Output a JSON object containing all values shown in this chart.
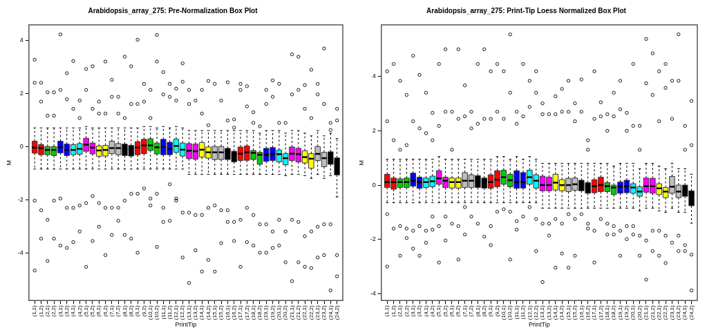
{
  "chart_data": [
    {
      "type": "box",
      "title": "Arabidopsis_array_275: Pre-Normalization Box Plot",
      "xlabel": "PrintTip",
      "ylabel": "M",
      "marker": "circle",
      "ylim": [
        -5.8,
        4.58
      ],
      "yticks": [
        -4,
        -2,
        0,
        2,
        4
      ],
      "categories": [
        "(1,1)",
        "(1,2)",
        "(2,1)",
        "(2,2)",
        "(3,1)",
        "(3,2)",
        "(4,1)",
        "(4,2)",
        "(5,1)",
        "(5,2)",
        "(6,1)",
        "(6,2)",
        "(7,1)",
        "(7,2)",
        "(8,1)",
        "(8,2)",
        "(9,1)",
        "(9,2)",
        "(10,1)",
        "(10,2)",
        "(11,1)",
        "(11,2)",
        "(12,1)",
        "(12,2)",
        "(13,1)",
        "(13,2)",
        "(14,1)",
        "(14,2)",
        "(15,1)",
        "(15,2)",
        "(16,1)",
        "(16,2)",
        "(17,1)",
        "(17,2)",
        "(18,1)",
        "(18,2)",
        "(19,1)",
        "(19,2)",
        "(20,1)",
        "(20,2)",
        "(21,1)",
        "(21,2)",
        "(22,1)",
        "(22,2)",
        "(23,1)",
        "(23,2)",
        "(24,1)",
        "(24,2)"
      ],
      "colors": [
        "#ff0000",
        "#ff0000",
        "#00cd00",
        "#00cd00",
        "#0000ff",
        "#0000ff",
        "#00ffff",
        "#00ffff",
        "#ff00ff",
        "#ff00ff",
        "#ffff00",
        "#ffff00",
        "#bebebe",
        "#bebebe",
        "#000000",
        "#000000",
        "#ff0000",
        "#ff0000",
        "#00cd00",
        "#00cd00",
        "#0000ff",
        "#0000ff",
        "#00ffff",
        "#00ffff",
        "#ff00ff",
        "#ff00ff",
        "#ffff00",
        "#ffff00",
        "#bebebe",
        "#bebebe",
        "#000000",
        "#000000",
        "#ff0000",
        "#ff0000",
        "#00cd00",
        "#00cd00",
        "#0000ff",
        "#0000ff",
        "#00ffff",
        "#00ffff",
        "#ff00ff",
        "#ff00ff",
        "#ffff00",
        "#ffff00",
        "#bebebe",
        "#bebebe",
        "#000000",
        "#000000"
      ],
      "boxes": [
        {
          "low": -0.85,
          "q1": -0.25,
          "median": -0.04,
          "q3": 0.2,
          "high": 0.7,
          "outliers": [
            3.27,
            2.4,
            -2.04,
            -4.67
          ]
        },
        {
          "low": -0.85,
          "q1": -0.31,
          "median": -0.06,
          "q3": 0.07,
          "high": 0.7,
          "outliers": [
            2.4,
            1.69,
            -2.4,
            -3.47
          ]
        },
        {
          "low": -0.85,
          "q1": -0.31,
          "median": -0.13,
          "q3": 0,
          "high": 0.7,
          "outliers": [
            2.04,
            1.16,
            -2.76,
            -4.31
          ]
        },
        {
          "low": -0.85,
          "q1": -0.34,
          "median": -0.13,
          "q3": 0,
          "high": 0.7,
          "outliers": [
            2.04,
            1.16,
            -2.04,
            -3.47
          ]
        },
        {
          "low": -0.85,
          "q1": -0.24,
          "median": -0.03,
          "q3": 0.2,
          "high": 0.7,
          "outliers": [
            4.22,
            2.13,
            -1.96,
            -3.73
          ]
        },
        {
          "low": -0.85,
          "q1": -0.34,
          "median": -0.13,
          "q3": 0.09,
          "high": 0.7,
          "outliers": [
            2.76,
            1.78,
            -2.31,
            -3.82
          ]
        },
        {
          "low": -0.85,
          "q1": -0.31,
          "median": -0.13,
          "q3": 0.07,
          "high": 0.7,
          "outliers": [
            3.22,
            1.42,
            -2.31,
            -3.6
          ]
        },
        {
          "low": -0.85,
          "q1": -0.29,
          "median": -0.09,
          "q3": 0.11,
          "high": 0.7,
          "outliers": [
            1.73,
            1.07,
            -2.22,
            -3.2
          ]
        },
        {
          "low": -0.85,
          "q1": -0.18,
          "median": 0.07,
          "q3": 0.31,
          "high": 0.75,
          "outliers": [
            2.92,
            2.13,
            -2.13,
            -4.53
          ]
        },
        {
          "low": -0.85,
          "q1": -0.28,
          "median": -0.04,
          "q3": 0.13,
          "high": 0.7,
          "outliers": [
            3.02,
            1.42,
            -1.87,
            -3.56
          ]
        },
        {
          "low": -0.85,
          "q1": -0.37,
          "median": -0.15,
          "q3": 0.02,
          "high": 0.7,
          "outliers": [
            1.69,
            1.24,
            -2.13,
            -3.02
          ]
        },
        {
          "low": -0.85,
          "q1": -0.36,
          "median": -0.13,
          "q3": 0.04,
          "high": 0.7,
          "outliers": [
            3.2,
            1.24,
            -2.31,
            -4.09
          ]
        },
        {
          "low": -0.85,
          "q1": -0.27,
          "median": -0.06,
          "q3": 0.2,
          "high": 0.7,
          "outliers": [
            2.51,
            1.87,
            -2.31,
            -3.33
          ]
        },
        {
          "low": -0.85,
          "q1": -0.31,
          "median": -0.06,
          "q3": 0.11,
          "high": 0.7,
          "outliers": [
            1.87,
            1.24,
            -2.31,
            -2.8
          ]
        },
        {
          "low": -0.85,
          "q1": -0.34,
          "median": -0.09,
          "q3": 0.09,
          "high": 0.7,
          "outliers": [
            3.38,
            1.07,
            -2.04,
            -3.33
          ]
        },
        {
          "low": -0.85,
          "q1": -0.36,
          "median": -0.09,
          "q3": 0.04,
          "high": 0.7,
          "outliers": [
            3.02,
            1.6,
            -1.78,
            -3.47
          ]
        },
        {
          "low": -0.85,
          "q1": -0.31,
          "median": -0.04,
          "q3": 0.18,
          "high": 0.7,
          "outliers": [
            4.02,
            1.6,
            -1.78,
            -4.0
          ]
        },
        {
          "low": -0.85,
          "q1": -0.27,
          "median": 0.04,
          "q3": 0.27,
          "high": 0.75,
          "outliers": [
            2.36,
            1.69,
            -1.58
          ]
        },
        {
          "low": -0.85,
          "q1": -0.15,
          "median": 0.04,
          "q3": 0.29,
          "high": 0.75,
          "outliers": [
            2.13,
            1.07,
            -1.96,
            -2.22
          ]
        },
        {
          "low": -0.85,
          "q1": -0.28,
          "median": -0.03,
          "q3": 0.13,
          "high": 0.7,
          "outliers": [
            4.2,
            3.2,
            -1.78,
            -3.78
          ]
        },
        {
          "low": -0.85,
          "q1": -0.31,
          "median": -0.02,
          "q3": 0.27,
          "high": 0.75,
          "outliers": [
            2.8,
            1.96,
            -2.31,
            -2.84
          ]
        },
        {
          "low": -0.85,
          "q1": -0.31,
          "median": -0.09,
          "q3": 0.16,
          "high": 0.7,
          "outliers": [
            2.36,
            1.87,
            -1.42,
            -2.8
          ]
        },
        {
          "low": -0.85,
          "q1": -0.22,
          "median": 0.02,
          "q3": 0.28,
          "high": 0.75,
          "outliers": [
            2.18,
            1.73,
            -1.96,
            -2.04
          ]
        },
        {
          "low": -0.85,
          "q1": -0.36,
          "median": -0.12,
          "q3": 0.13,
          "high": 0.7,
          "outliers": [
            3.13,
            2.44,
            -2.49,
            -4.18
          ]
        },
        {
          "low": -1.05,
          "q1": -0.46,
          "median": -0.16,
          "q3": 0.11,
          "high": 0.6,
          "outliers": [
            2.13,
            1.6,
            -2.49,
            -5.14
          ]
        },
        {
          "low": -1.05,
          "q1": -0.48,
          "median": -0.18,
          "q3": 0.09,
          "high": 0.6,
          "outliers": [
            1.73,
            -2.58,
            -3.91
          ]
        },
        {
          "low": -1.05,
          "q1": -0.4,
          "median": -0.12,
          "q3": 0.15,
          "high": 0.6,
          "outliers": [
            2.13,
            1.24,
            -2.58,
            -4.71
          ]
        },
        {
          "low": -1.05,
          "q1": -0.44,
          "median": -0.22,
          "q3": -0.02,
          "high": 0.6,
          "outliers": [
            2.47,
            0.8,
            -2.31,
            -4.27
          ]
        },
        {
          "low": -1.05,
          "q1": -0.49,
          "median": -0.22,
          "q3": 0,
          "high": 0.6,
          "outliers": [
            2.36,
            -2.22,
            -4.71
          ]
        },
        {
          "low": -1.05,
          "q1": -0.49,
          "median": -0.22,
          "q3": 0,
          "high": 0.6,
          "outliers": [
            1.73,
            -2.4,
            -3.64
          ]
        },
        {
          "low": -1.05,
          "q1": -0.49,
          "median": -0.18,
          "q3": -0.07,
          "high": 0.6,
          "outliers": [
            2.42,
            0.98,
            -2.4,
            -2.84
          ]
        },
        {
          "low": -1.05,
          "q1": -0.58,
          "median": -0.31,
          "q3": -0.18,
          "high": 0.6,
          "outliers": [
            1.02,
            0.71,
            -2.84,
            -3.56
          ]
        },
        {
          "low": -1.05,
          "q1": -0.53,
          "median": -0.27,
          "q3": -0.02,
          "high": 0.6,
          "outliers": [
            2.36,
            2.13,
            -2.76,
            -4.53
          ]
        },
        {
          "low": -1.05,
          "q1": -0.52,
          "median": -0.22,
          "q3": 0.02,
          "high": 0.6,
          "outliers": [
            2.27,
            1.51,
            -2.31,
            -3.6
          ]
        },
        {
          "low": -1.05,
          "q1": -0.49,
          "median": -0.24,
          "q3": -0.15,
          "high": 0.6,
          "outliers": [
            1.29,
            0.89,
            -2.58,
            -3.73
          ]
        },
        {
          "low": -1.05,
          "q1": -0.67,
          "median": -0.31,
          "q3": -0.22,
          "high": 0.5,
          "outliers": [
            0.76,
            -2.93,
            -4.0
          ]
        },
        {
          "low": -1.05,
          "q1": -0.56,
          "median": -0.31,
          "q3": -0.07,
          "high": 0.6,
          "outliers": [
            2.13,
            1.6,
            -2.93,
            -4.0
          ]
        },
        {
          "low": -1.05,
          "q1": -0.53,
          "median": -0.28,
          "q3": -0.04,
          "high": 0.6,
          "outliers": [
            2.49,
            1.87,
            -3.2,
            -3.82
          ]
        },
        {
          "low": -1.05,
          "q1": -0.58,
          "median": -0.29,
          "q3": -0.13,
          "high": 0.6,
          "outliers": [
            2.36,
            0.89,
            -2.76,
            -3.73
          ]
        },
        {
          "low": -1.1,
          "q1": -0.69,
          "median": -0.44,
          "q3": -0.27,
          "high": 0.5,
          "outliers": [
            0.89,
            -3.2,
            -4.36
          ]
        },
        {
          "low": -1.05,
          "q1": -0.53,
          "median": -0.27,
          "q3": -0.02,
          "high": 0.6,
          "outliers": [
            3.47,
            1.96,
            -2.76,
            -5.07
          ]
        },
        {
          "low": -1.05,
          "q1": -0.58,
          "median": -0.29,
          "q3": -0.07,
          "high": 0.6,
          "outliers": [
            3.38,
            2.13,
            -2.84,
            -4.36
          ]
        },
        {
          "low": -1.1,
          "q1": -0.62,
          "median": -0.4,
          "q3": -0.16,
          "high": 0.5,
          "outliers": [
            2.31,
            1.42,
            -3.38,
            -4.53
          ]
        },
        {
          "low": -1.2,
          "q1": -0.82,
          "median": -0.46,
          "q3": -0.27,
          "high": 0.4,
          "outliers": [
            2.89,
            1.07,
            -3.2,
            -4.58
          ]
        },
        {
          "low": -1.05,
          "q1": -0.53,
          "median": -0.28,
          "q3": 0,
          "high": 0.6,
          "outliers": [
            2.36,
            1.96,
            -3.02,
            -4.18
          ]
        },
        {
          "low": -1.2,
          "q1": -0.76,
          "median": -0.44,
          "q3": -0.22,
          "high": 0.4,
          "outliers": [
            3.69,
            1.6,
            -2.93,
            -4.09
          ]
        },
        {
          "low": -1.1,
          "q1": -0.67,
          "median": -0.44,
          "q3": -0.2,
          "high": 0.5,
          "outliers": [
            0.89,
            0.62,
            -2.93,
            -5.42
          ]
        },
        {
          "low": -1.9,
          "q1": -1.07,
          "median": -0.6,
          "q3": -0.43,
          "high": 0.3,
          "outliers": [
            1.42,
            0.98,
            -4.09,
            -4.89
          ]
        }
      ]
    },
    {
      "type": "box",
      "title": "Arabidopsis_array_275: Print-Tip Loess Normalized Box Plot",
      "xlabel": "PrintTip",
      "ylabel": "M",
      "marker": "circle",
      "ylim": [
        -4.25,
        5.9
      ],
      "yticks": [
        -4,
        -2,
        0,
        2,
        4
      ],
      "categories": [
        "(1,1)",
        "(1,2)",
        "(2,1)",
        "(2,2)",
        "(3,1)",
        "(3,2)",
        "(4,1)",
        "(4,2)",
        "(5,1)",
        "(5,2)",
        "(6,1)",
        "(6,2)",
        "(7,1)",
        "(7,2)",
        "(8,1)",
        "(8,2)",
        "(9,1)",
        "(9,2)",
        "(10,1)",
        "(10,2)",
        "(11,1)",
        "(11,2)",
        "(12,1)",
        "(12,2)",
        "(13,1)",
        "(13,2)",
        "(14,1)",
        "(14,2)",
        "(15,1)",
        "(15,2)",
        "(16,1)",
        "(16,2)",
        "(17,1)",
        "(17,2)",
        "(18,1)",
        "(18,2)",
        "(19,1)",
        "(19,2)",
        "(20,1)",
        "(20,2)",
        "(21,1)",
        "(21,2)",
        "(22,1)",
        "(22,2)",
        "(23,1)",
        "(23,2)",
        "(24,1)",
        "(24,2)"
      ],
      "colors": [
        "#ff0000",
        "#ff0000",
        "#00cd00",
        "#00cd00",
        "#0000ff",
        "#0000ff",
        "#00ffff",
        "#00ffff",
        "#ff00ff",
        "#ff00ff",
        "#ffff00",
        "#ffff00",
        "#bebebe",
        "#bebebe",
        "#000000",
        "#000000",
        "#ff0000",
        "#ff0000",
        "#00cd00",
        "#00cd00",
        "#0000ff",
        "#0000ff",
        "#00ffff",
        "#00ffff",
        "#ff00ff",
        "#ff00ff",
        "#ffff00",
        "#ffff00",
        "#bebebe",
        "#bebebe",
        "#000000",
        "#000000",
        "#ff0000",
        "#ff0000",
        "#00cd00",
        "#00cd00",
        "#0000ff",
        "#0000ff",
        "#00ffff",
        "#00ffff",
        "#ff00ff",
        "#ff00ff",
        "#ffff00",
        "#ffff00",
        "#bebebe",
        "#bebebe",
        "#000000",
        "#000000"
      ],
      "boxes": [
        {
          "low": -0.65,
          "q1": -0.09,
          "median": 0.11,
          "q3": 0.4,
          "high": 0.95,
          "outliers": [
            4.19,
            2.35,
            -1.07,
            -3.0
          ]
        },
        {
          "low": -0.65,
          "q1": -0.15,
          "median": 0.11,
          "q3": 0.26,
          "high": 0.95,
          "outliers": [
            4.46,
            1.65,
            -1.6
          ]
        },
        {
          "low": -0.65,
          "q1": -0.09,
          "median": 0.11,
          "q3": 0.23,
          "high": 0.95,
          "outliers": [
            3.84,
            1.3,
            -1.51,
            -2.6
          ]
        },
        {
          "low": -0.65,
          "q1": -0.09,
          "median": 0.11,
          "q3": 0.26,
          "high": 0.95,
          "outliers": [
            3.32,
            1.47,
            -1.6,
            -1.95
          ]
        },
        {
          "low": -0.65,
          "q1": -0.04,
          "median": 0.16,
          "q3": 0.44,
          "high": 0.95,
          "outliers": [
            4.76,
            2.35,
            -1.68,
            -2.34
          ]
        },
        {
          "low": -0.65,
          "q1": -0.12,
          "median": 0.11,
          "q3": 0.29,
          "high": 0.95,
          "outliers": [
            4.06,
            2.09,
            -1.51,
            -2.6
          ]
        },
        {
          "low": -0.65,
          "q1": -0.09,
          "median": 0.11,
          "q3": 0.26,
          "high": 0.95,
          "outliers": [
            3.4,
            1.91,
            -1.68,
            -2.12
          ]
        },
        {
          "low": -0.65,
          "q1": -0.06,
          "median": 0.14,
          "q3": 0.33,
          "high": 0.95,
          "outliers": [
            2.66,
            1.65,
            -1.16,
            -1.64
          ]
        },
        {
          "low": -0.65,
          "q1": 0.03,
          "median": 0.25,
          "q3": 0.53,
          "high": 1.05,
          "outliers": [
            4.46,
            2.18,
            -1.51,
            -2.85
          ]
        },
        {
          "low": -0.65,
          "q1": -0.09,
          "median": 0.16,
          "q3": 0.29,
          "high": 0.95,
          "outliers": [
            5.0,
            2.7,
            -1.16,
            -2.04
          ]
        },
        {
          "low": -0.65,
          "q1": -0.11,
          "median": 0.11,
          "q3": 0.26,
          "high": 0.95,
          "outliers": [
            2.7,
            1.3,
            -1.42
          ]
        },
        {
          "low": -0.65,
          "q1": -0.11,
          "median": 0.11,
          "q3": 0.26,
          "high": 0.95,
          "outliers": [
            5.0,
            2.44,
            -1.51,
            -2.74
          ]
        },
        {
          "low": -0.65,
          "q1": -0.09,
          "median": 0.16,
          "q3": 0.46,
          "high": 0.95,
          "outliers": [
            3.67,
            2.53,
            -0.81,
            -1.82
          ]
        },
        {
          "low": -0.65,
          "q1": -0.09,
          "median": 0.16,
          "q3": 0.38,
          "high": 0.95,
          "outliers": [
            2.7,
            2.09,
            -1.16
          ]
        },
        {
          "low": -0.65,
          "q1": -0.09,
          "median": 0.14,
          "q3": 0.35,
          "high": 0.95,
          "outliers": [
            4.46,
            2.26,
            -1.42
          ]
        },
        {
          "low": -0.65,
          "q1": -0.11,
          "median": 0.14,
          "q3": 0.26,
          "high": 0.95,
          "outliers": [
            5.0,
            2.44,
            -1.9
          ]
        },
        {
          "low": -0.65,
          "q1": -0.12,
          "median": 0.11,
          "q3": 0.38,
          "high": 0.95,
          "outliers": [
            4.19,
            2.44,
            -1.51,
            -2.21
          ]
        },
        {
          "low": -0.65,
          "q1": -0.06,
          "median": 0.2,
          "q3": 0.53,
          "high": 1.05,
          "outliers": [
            4.46,
            2.7,
            -0.98
          ]
        },
        {
          "low": -0.65,
          "q1": 0.03,
          "median": 0.29,
          "q3": 0.55,
          "high": 1.05,
          "outliers": [
            4.19,
            2.44,
            -0.89
          ]
        },
        {
          "low": -0.65,
          "q1": -0.06,
          "median": 0.18,
          "q3": 0.4,
          "high": 0.95,
          "outliers": [
            5.55,
            3.4,
            -0.98,
            -2.74
          ]
        },
        {
          "low": -0.65,
          "q1": -0.12,
          "median": 0.11,
          "q3": 0.53,
          "high": 1.05,
          "outliers": [
            2.7,
            2.26,
            -1.33,
            -1.64
          ]
        },
        {
          "low": -0.65,
          "q1": -0.11,
          "median": 0.11,
          "q3": 0.46,
          "high": 0.95,
          "outliers": [
            4.46,
            2.53,
            -1.16
          ]
        },
        {
          "low": -0.65,
          "q1": 0.03,
          "median": 0.29,
          "q3": 0.55,
          "high": 1.05,
          "outliers": [
            3.84,
            2.88,
            -0.81
          ]
        },
        {
          "low": -0.65,
          "q1": -0.11,
          "median": 0.16,
          "q3": 0.38,
          "high": 0.95,
          "outliers": [
            4.19,
            3.4,
            -1.25,
            -2.43
          ]
        },
        {
          "low": -0.85,
          "q1": -0.21,
          "median": 0,
          "q3": 0.33,
          "high": 0.8,
          "outliers": [
            3.01,
            2.61,
            -1.42,
            -3.57
          ]
        },
        {
          "low": -0.85,
          "q1": -0.21,
          "median": 0,
          "q3": 0.29,
          "high": 0.8,
          "outliers": [
            2.61,
            -1.42,
            -1.86
          ]
        },
        {
          "low": -0.85,
          "q1": -0.18,
          "median": 0.09,
          "q3": 0.4,
          "high": 0.8,
          "outliers": [
            3.27,
            2.61,
            -1.25,
            -3.04
          ]
        },
        {
          "low": -0.85,
          "q1": -0.21,
          "median": 0,
          "q3": 0.2,
          "high": 0.8,
          "outliers": [
            3.54,
            2.7,
            -1.42,
            -2.52
          ]
        },
        {
          "low": -0.85,
          "q1": -0.24,
          "median": 0,
          "q3": 0.25,
          "high": 0.8,
          "outliers": [
            3.84,
            2.7,
            -1.07,
            -3.04
          ]
        },
        {
          "low": -0.85,
          "q1": -0.19,
          "median": 0.03,
          "q3": 0.26,
          "high": 0.8,
          "outliers": [
            3.01,
            2.35,
            -1.25,
            -2.6
          ]
        },
        {
          "low": -0.85,
          "q1": -0.21,
          "median": 0.03,
          "q3": 0.18,
          "high": 0.8,
          "outliers": [
            3.89,
            2.7,
            -1.07
          ]
        },
        {
          "low": -0.85,
          "q1": -0.3,
          "median": -0.06,
          "q3": 0.09,
          "high": 0.8,
          "outliers": [
            1.65,
            1.3,
            -1.42,
            -1.6
          ]
        },
        {
          "low": -0.85,
          "q1": -0.28,
          "median": -0.04,
          "q3": 0.2,
          "high": 0.8,
          "outliers": [
            4.19,
            2.44,
            -1.68,
            -2.85
          ]
        },
        {
          "low": -0.85,
          "q1": -0.24,
          "median": 0,
          "q3": 0.29,
          "high": 0.8,
          "outliers": [
            3.05,
            2.53,
            -1.25
          ]
        },
        {
          "low": -0.85,
          "q1": -0.24,
          "median": -0.04,
          "q3": 0.09,
          "high": 0.8,
          "outliers": [
            2.61,
            2.0,
            -1.42,
            -1.82
          ]
        },
        {
          "low": -0.85,
          "q1": -0.35,
          "median": -0.09,
          "q3": 0,
          "high": 0.7,
          "outliers": [
            3.4,
            2.53,
            -1.51,
            -1.82
          ]
        },
        {
          "low": -0.85,
          "q1": -0.3,
          "median": -0.06,
          "q3": 0.11,
          "high": 0.8,
          "outliers": [
            3.84,
            2.79,
            -1.68,
            -2.6
          ]
        },
        {
          "low": -0.85,
          "q1": -0.28,
          "median": -0.04,
          "q3": 0.18,
          "high": 0.8,
          "outliers": [
            2.66,
            2.0,
            -1.51,
            -1.99
          ]
        },
        {
          "low": -0.85,
          "q1": -0.3,
          "median": -0.09,
          "q3": 0.05,
          "high": 0.8,
          "outliers": [
            4.46,
            2.18,
            -1.51,
            -1.82
          ]
        },
        {
          "low": -0.95,
          "q1": -0.41,
          "median": -0.24,
          "q3": -0.06,
          "high": 0.6,
          "outliers": [
            2.18,
            1.3,
            -1.86,
            -2.6
          ]
        },
        {
          "low": -0.85,
          "q1": -0.26,
          "median": -0.04,
          "q3": 0.26,
          "high": 0.8,
          "outliers": [
            5.38,
            3.75,
            -2.04,
            -3.48
          ]
        },
        {
          "low": -0.85,
          "q1": -0.3,
          "median": -0.04,
          "q3": 0.25,
          "high": 0.8,
          "outliers": [
            4.85,
            3.32,
            -1.68,
            -2.43
          ]
        },
        {
          "low": -0.95,
          "q1": -0.35,
          "median": -0.12,
          "q3": 0.05,
          "high": 0.7,
          "outliers": [
            4.19,
            2.35,
            -1.68,
            -2.6
          ]
        },
        {
          "low": -1.0,
          "q1": -0.46,
          "median": -0.24,
          "q3": -0.09,
          "high": 0.6,
          "outliers": [
            4.46,
            3.58,
            -1.86,
            -2.87
          ]
        },
        {
          "low": -0.85,
          "q1": -0.3,
          "median": -0.06,
          "q3": 0.32,
          "high": 0.8,
          "outliers": [
            3.84,
            2.44,
            -2.12
          ]
        },
        {
          "low": -1.0,
          "q1": -0.46,
          "median": -0.24,
          "q3": 0,
          "high": 0.6,
          "outliers": [
            5.55,
            3.84,
            -1.86,
            -2.43
          ]
        },
        {
          "low": -1.0,
          "q1": -0.41,
          "median": -0.24,
          "q3": 0,
          "high": 0.6,
          "outliers": [
            2.18,
            1.3,
            -2.21,
            -2.43
          ]
        },
        {
          "low": -1.4,
          "q1": -0.76,
          "median": -0.35,
          "q3": -0.21,
          "high": 0.4,
          "outliers": [
            3.1,
            1.47,
            -2.56,
            -3.88
          ]
        }
      ]
    }
  ]
}
